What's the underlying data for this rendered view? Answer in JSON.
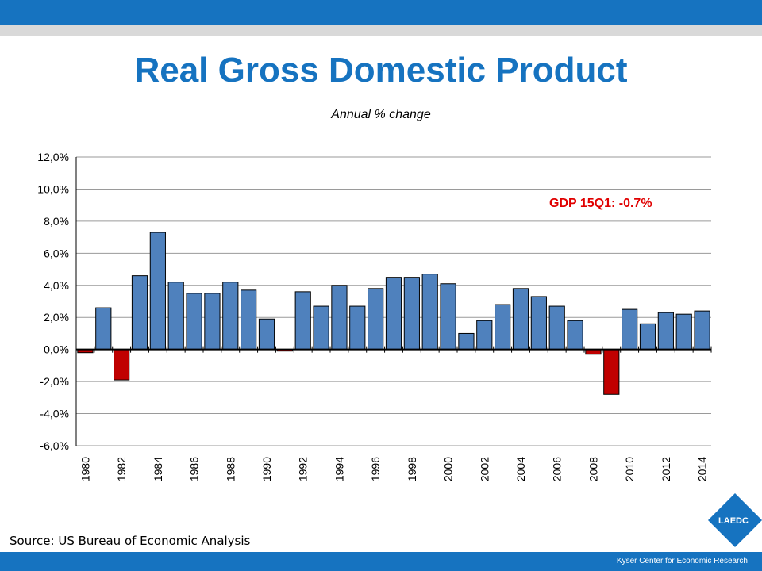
{
  "slide": {
    "title": "Real Gross Domestic Product",
    "subtitle": "Annual % change",
    "source": "Source: US Bureau of Economic Analysis",
    "footer": "Kyser Center for Economic Research",
    "logo_text": "LAEDC",
    "colors": {
      "brand_blue": "#1673c0",
      "bar_positive": "#4f81bd",
      "bar_negative": "#c00000",
      "annotation": "#e00000"
    }
  },
  "chart_data": {
    "type": "bar",
    "title": "Real Gross Domestic Product",
    "subtitle": "Annual % change",
    "annotation": "GDP 15Q1: -0.7%",
    "ylim": [
      -6,
      12
    ],
    "yticks": [
      -6,
      -4,
      -2,
      0,
      2,
      4,
      6,
      8,
      10,
      12
    ],
    "ytick_labels": [
      "-6,0%",
      "-4,0%",
      "-2,0%",
      "0,0%",
      "2,0%",
      "4,0%",
      "6,0%",
      "8,0%",
      "10,0%",
      "12,0%"
    ],
    "grid": true,
    "x_tick_labels": [
      "1980",
      "1982",
      "1984",
      "1986",
      "1988",
      "1990",
      "1992",
      "1994",
      "1996",
      "1998",
      "2000",
      "2002",
      "2004",
      "2006",
      "2008",
      "2010",
      "2012",
      "2014"
    ],
    "categories": [
      1980,
      1981,
      1982,
      1983,
      1984,
      1985,
      1986,
      1987,
      1988,
      1989,
      1990,
      1991,
      1992,
      1993,
      1994,
      1995,
      1996,
      1997,
      1998,
      1999,
      2000,
      2001,
      2002,
      2003,
      2004,
      2005,
      2006,
      2007,
      2008,
      2009,
      2010,
      2011,
      2012,
      2013,
      2014
    ],
    "values": [
      -0.2,
      2.6,
      -1.9,
      4.6,
      7.3,
      4.2,
      3.5,
      3.5,
      4.2,
      3.7,
      1.9,
      -0.1,
      3.6,
      2.7,
      4.0,
      2.7,
      3.8,
      4.5,
      4.5,
      4.7,
      4.1,
      1.0,
      1.8,
      2.8,
      3.8,
      3.3,
      2.7,
      1.8,
      -0.3,
      -2.8,
      2.5,
      1.6,
      2.3,
      2.2,
      2.4
    ]
  }
}
